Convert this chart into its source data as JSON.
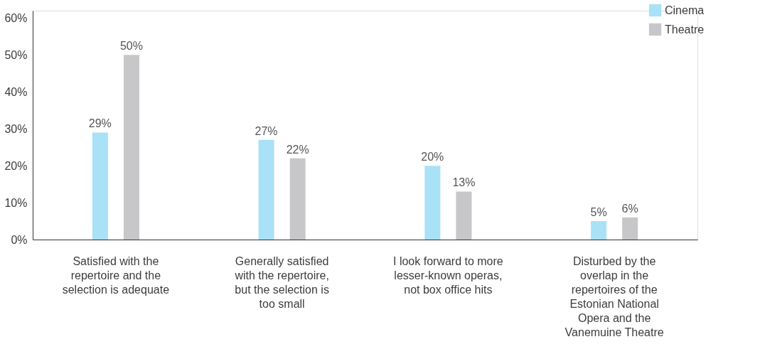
{
  "chart_data": {
    "type": "bar",
    "categories": [
      "Satisfied with the repertoire and the selection is adequate",
      "Generally satisfied with the repertoire, but the selection is too small",
      "I look forward to more lesser-known operas, not box office hits",
      "Disturbed by the overlap in the repertoires of the Estonian National Opera and the Vanemuine Theatre"
    ],
    "series": [
      {
        "name": "Cinema",
        "color": "#a9e1f7",
        "values": [
          29,
          27,
          20,
          5
        ],
        "value_labels": [
          "29%",
          "27%",
          "20%",
          "5%"
        ]
      },
      {
        "name": "Theatre",
        "color": "#c7c7c9",
        "values": [
          50,
          22,
          13,
          6
        ],
        "value_labels": [
          "50%",
          "22%",
          "13%",
          "6%"
        ]
      }
    ],
    "ylim": [
      0,
      62
    ],
    "yticks": [
      {
        "value": 0,
        "label": "0%"
      },
      {
        "value": 10,
        "label": "10%"
      },
      {
        "value": 20,
        "label": "20%"
      },
      {
        "value": 30,
        "label": "30%"
      },
      {
        "value": 40,
        "label": "40%"
      },
      {
        "value": 50,
        "label": "50%"
      },
      {
        "value": 60,
        "label": "60%"
      }
    ],
    "grid": false,
    "legend": "top right"
  }
}
